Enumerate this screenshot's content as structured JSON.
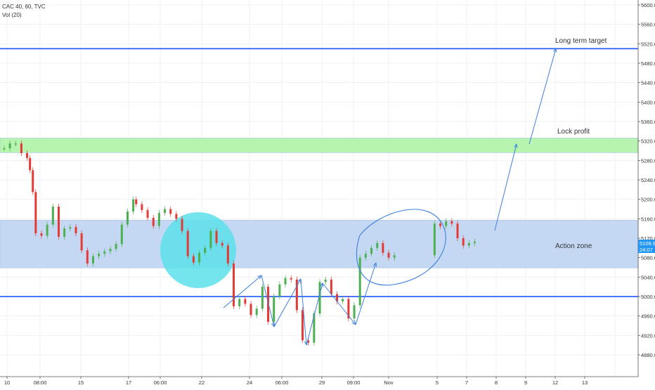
{
  "header": {
    "title": "CAC 40, 60, TVC",
    "indicator": "Vol (20)"
  },
  "price_badge": {
    "price": "5109.9",
    "countdown": "24:07",
    "color": "#2196f3"
  },
  "colors": {
    "up": "#4caf50",
    "down": "#e53935",
    "line": "#2962ff",
    "green_zone": "#b6f4b0",
    "blue_zone": "#c4d8f3",
    "circle": "#5ce1ea",
    "annotation": "#3d7fdc"
  },
  "chart_data": {
    "type": "candlestick",
    "title": "CAC 40, 60, TVC",
    "indicators": [
      "Vol (20)"
    ],
    "x_tick_labels": [
      "10",
      "08:00",
      "15",
      "17",
      "06:00",
      "22",
      "24",
      "06:00",
      "29",
      "09:00",
      "Nov",
      "5",
      "7",
      "8",
      "9",
      "12",
      "13"
    ],
    "y_ticks": [
      4880,
      4920,
      4960,
      5000,
      5040,
      5080,
      5120,
      5160,
      5200,
      5240,
      5280,
      5320,
      5360,
      5400,
      5440,
      5480,
      5520,
      5560,
      5600
    ],
    "y_tick_labels": [
      "4880.0",
      "4920.0",
      "4960.0",
      "5000.0",
      "5040.0",
      "5080.0",
      "5120.0",
      "5160.0",
      "5200.0",
      "5240.0",
      "5280.0",
      "5320.0",
      "5360.0",
      "5400.0",
      "5440.0",
      "5480.0",
      "5520.0",
      "5560.0",
      "5600.0"
    ],
    "ylim": [
      4868,
      5611
    ],
    "last_price": 5109.9,
    "horizontal_lines": [
      {
        "y": 5510,
        "label": "Long term target"
      },
      {
        "y": 5000
      }
    ],
    "zones": [
      {
        "y_low": 5296,
        "y_high": 5326,
        "label": "Lock profit",
        "color": "#b6f4b0"
      },
      {
        "y_low": 5059,
        "y_high": 5157,
        "label": "Action zone",
        "color": "#c4d8f3"
      }
    ],
    "close_path": [
      [
        0,
        5305
      ],
      [
        2,
        5315
      ],
      [
        4,
        5315
      ],
      [
        6,
        5295
      ],
      [
        8,
        5285
      ],
      [
        9,
        5260
      ],
      [
        10,
        5215
      ],
      [
        11,
        5130
      ],
      [
        13,
        5125
      ],
      [
        15,
        5148
      ],
      [
        17,
        5185
      ],
      [
        19,
        5123
      ],
      [
        21,
        5140
      ],
      [
        23,
        5143
      ],
      [
        25,
        5130
      ],
      [
        27,
        5095
      ],
      [
        29,
        5068
      ],
      [
        31,
        5083
      ],
      [
        33,
        5088
      ],
      [
        35,
        5093
      ],
      [
        37,
        5098
      ],
      [
        39,
        5108
      ],
      [
        41,
        5148
      ],
      [
        43,
        5175
      ],
      [
        45,
        5200
      ],
      [
        46,
        5190
      ],
      [
        48,
        5178
      ],
      [
        50,
        5162
      ],
      [
        52,
        5145
      ],
      [
        54,
        5172
      ],
      [
        56,
        5180
      ],
      [
        58,
        5170
      ],
      [
        60,
        5160
      ],
      [
        62,
        5135
      ],
      [
        64,
        5083
      ],
      [
        66,
        5070
      ],
      [
        68,
        5090
      ],
      [
        70,
        5100
      ],
      [
        72,
        5135
      ],
      [
        74,
        5110
      ],
      [
        76,
        5105
      ],
      [
        78,
        5068
      ],
      [
        80,
        4980
      ],
      [
        82,
        4995
      ],
      [
        84,
        4985
      ],
      [
        86,
        4962
      ],
      [
        88,
        4975
      ],
      [
        90,
        5020
      ],
      [
        92,
        4948
      ],
      [
        94,
        5000
      ],
      [
        96,
        5025
      ],
      [
        98,
        5038
      ],
      [
        100,
        5035
      ],
      [
        102,
        4972
      ],
      [
        104,
        4910
      ],
      [
        106,
        4905
      ],
      [
        108,
        4965
      ],
      [
        110,
        5030
      ],
      [
        112,
        5035
      ],
      [
        114,
        5005
      ],
      [
        116,
        4990
      ],
      [
        118,
        4995
      ],
      [
        120,
        4955
      ],
      [
        122,
        4982
      ],
      [
        124,
        5080
      ],
      [
        126,
        5088
      ],
      [
        128,
        5100
      ],
      [
        130,
        5110
      ],
      [
        132,
        5090
      ],
      [
        134,
        5080
      ],
      [
        136,
        5085
      ],
      [
        150,
        5150
      ],
      [
        152,
        5145
      ],
      [
        154,
        5155
      ],
      [
        156,
        5150
      ],
      [
        158,
        5120
      ],
      [
        160,
        5105
      ],
      [
        162,
        5110
      ],
      [
        164,
        5113
      ]
    ],
    "x_range": [
      0,
      215
    ]
  },
  "annotations": {
    "top_label": "Long term target",
    "mid_label": "Lock profit",
    "zone_label": "Action zone"
  }
}
